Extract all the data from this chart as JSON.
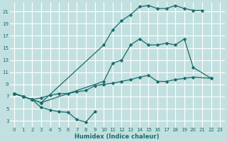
{
  "xlabel": "Humidex (Indice chaleur)",
  "bg_color": "#c2e0e0",
  "grid_color": "#ffffff",
  "line_color": "#1a6b6b",
  "xlim": [
    -0.5,
    23.5
  ],
  "ylim": [
    2,
    22.5
  ],
  "xticks": [
    0,
    1,
    2,
    3,
    4,
    5,
    6,
    7,
    8,
    9,
    10,
    11,
    12,
    13,
    14,
    15,
    16,
    17,
    18,
    19,
    20,
    21,
    22,
    23
  ],
  "yticks": [
    3,
    5,
    7,
    9,
    11,
    13,
    15,
    17,
    19,
    21
  ],
  "series": [
    {
      "x": [
        0,
        1,
        2,
        3,
        4,
        5,
        6,
        7,
        8,
        9
      ],
      "y": [
        7.5,
        7.0,
        6.5,
        5.2,
        4.8,
        4.5,
        4.4,
        3.2,
        2.8,
        4.5
      ]
    },
    {
      "x": [
        0,
        1,
        2,
        3,
        10,
        11,
        12,
        13,
        14,
        15,
        16,
        17,
        18,
        19,
        20,
        21
      ],
      "y": [
        7.5,
        7.0,
        6.5,
        6.0,
        15.5,
        18.0,
        19.5,
        20.5,
        21.8,
        22.0,
        21.5,
        21.5,
        22.0,
        21.5,
        21.2,
        21.2
      ]
    },
    {
      "x": [
        0,
        1,
        2,
        3,
        10,
        11,
        12,
        13,
        14,
        15,
        16,
        17,
        18,
        19,
        20,
        22
      ],
      "y": [
        7.5,
        7.0,
        6.5,
        6.0,
        9.5,
        12.5,
        13.0,
        15.5,
        16.5,
        15.5,
        15.5,
        15.8,
        15.5,
        16.5,
        11.8,
        10.0
      ]
    },
    {
      "x": [
        0,
        1,
        2,
        3,
        4,
        5,
        6,
        7,
        8,
        9,
        10,
        11,
        12,
        13,
        14,
        15,
        16,
        17,
        18,
        19,
        20,
        22
      ],
      "y": [
        7.5,
        7.0,
        6.5,
        6.8,
        7.2,
        7.5,
        7.5,
        7.8,
        8.0,
        8.8,
        9.0,
        9.2,
        9.5,
        9.8,
        10.2,
        10.5,
        9.5,
        9.5,
        9.8,
        10.0,
        10.2,
        10.0
      ]
    }
  ]
}
